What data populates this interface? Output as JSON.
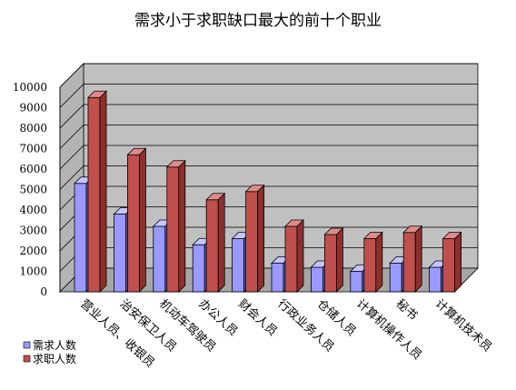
{
  "chart_data": {
    "type": "bar",
    "title": "需求小于求职缺口最大的前十个职业",
    "categories": [
      "营业人员、收银员",
      "治安保卫人员",
      "机动车驾驶员",
      "办公人员",
      "财会人员",
      "行政业务人员",
      "仓储人员",
      "计算机操作人员",
      "秘书",
      "计算机技术员"
    ],
    "series": [
      {
        "name": "需求人数",
        "values": [
          5300,
          3800,
          3200,
          2300,
          2600,
          1400,
          1200,
          1000,
          1400,
          1200
        ]
      },
      {
        "name": "求职人数",
        "values": [
          9500,
          6700,
          6100,
          4500,
          4900,
          3200,
          2800,
          2600,
          2900,
          2600
        ]
      }
    ],
    "ylim": [
      0,
      10000
    ],
    "yticks": [
      "0",
      "1000",
      "2000",
      "3000",
      "4000",
      "5000",
      "6000",
      "7000",
      "8000",
      "9000",
      "10000"
    ],
    "grid": true,
    "legend_position": "bottom-left",
    "colors": {
      "demand_front": "#9999ff",
      "demand_side": "#5c5cc0",
      "demand_top": "#c4c4ff",
      "supply_front": "#c0504d",
      "supply_side": "#8e2f2d",
      "supply_top": "#e08a88",
      "plot_wall": "#c0c0c0",
      "plot_floor": "#a6a6a6"
    }
  }
}
